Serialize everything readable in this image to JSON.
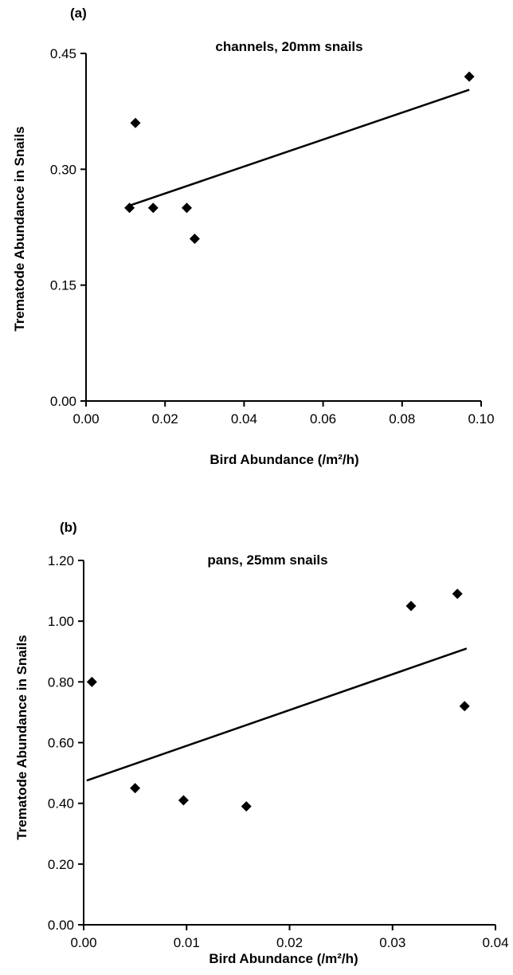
{
  "chart_data": [
    {
      "type": "scatter",
      "panel_label": "(a)",
      "title": "channels, 20mm snails",
      "xlabel": "Bird Abundance (/m²/h)",
      "ylabel": "Trematode Abundance in Snails",
      "xlim": [
        0,
        0.1
      ],
      "ylim": [
        0,
        0.45
      ],
      "x_ticks": [
        "0.00",
        "0.02",
        "0.04",
        "0.06",
        "0.08",
        "0.10"
      ],
      "y_ticks": [
        "0.00",
        "0.15",
        "0.30",
        "0.45"
      ],
      "x_tick_values": [
        0,
        0.02,
        0.04,
        0.06,
        0.08,
        0.1
      ],
      "y_tick_values": [
        0,
        0.15,
        0.3,
        0.45
      ],
      "series": [
        {
          "marker": "diamond",
          "points": [
            {
              "x": 0.011,
              "y": 0.25
            },
            {
              "x": 0.0125,
              "y": 0.36
            },
            {
              "x": 0.017,
              "y": 0.25
            },
            {
              "x": 0.0255,
              "y": 0.25
            },
            {
              "x": 0.0275,
              "y": 0.21
            },
            {
              "x": 0.097,
              "y": 0.42
            }
          ]
        }
      ],
      "trendline": {
        "x": [
          0.011,
          0.097
        ],
        "y": [
          0.253,
          0.403
        ]
      },
      "grid": false,
      "legend": "none"
    },
    {
      "type": "scatter",
      "panel_label": "(b)",
      "title": "pans, 25mm snails",
      "xlabel": "Bird Abundance (/m²/h)",
      "ylabel": "Trematode Abundance in Snails",
      "xlim": [
        0,
        0.04
      ],
      "ylim": [
        0,
        1.2
      ],
      "x_ticks": [
        "0.00",
        "0.01",
        "0.02",
        "0.03",
        "0.04"
      ],
      "y_ticks": [
        "0.00",
        "0.20",
        "0.40",
        "0.60",
        "0.80",
        "1.00",
        "1.20"
      ],
      "x_tick_values": [
        0,
        0.01,
        0.02,
        0.03,
        0.04
      ],
      "y_tick_values": [
        0,
        0.2,
        0.4,
        0.6,
        0.8,
        1.0,
        1.2
      ],
      "series": [
        {
          "marker": "diamond",
          "points": [
            {
              "x": 0.0008,
              "y": 0.8
            },
            {
              "x": 0.005,
              "y": 0.45
            },
            {
              "x": 0.0097,
              "y": 0.41
            },
            {
              "x": 0.0158,
              "y": 0.39
            },
            {
              "x": 0.0318,
              "y": 1.05
            },
            {
              "x": 0.0363,
              "y": 1.09
            },
            {
              "x": 0.037,
              "y": 0.72
            }
          ]
        }
      ],
      "trendline": {
        "x": [
          0.0003,
          0.0372
        ],
        "y": [
          0.475,
          0.91
        ]
      },
      "grid": false,
      "legend": "none"
    }
  ]
}
